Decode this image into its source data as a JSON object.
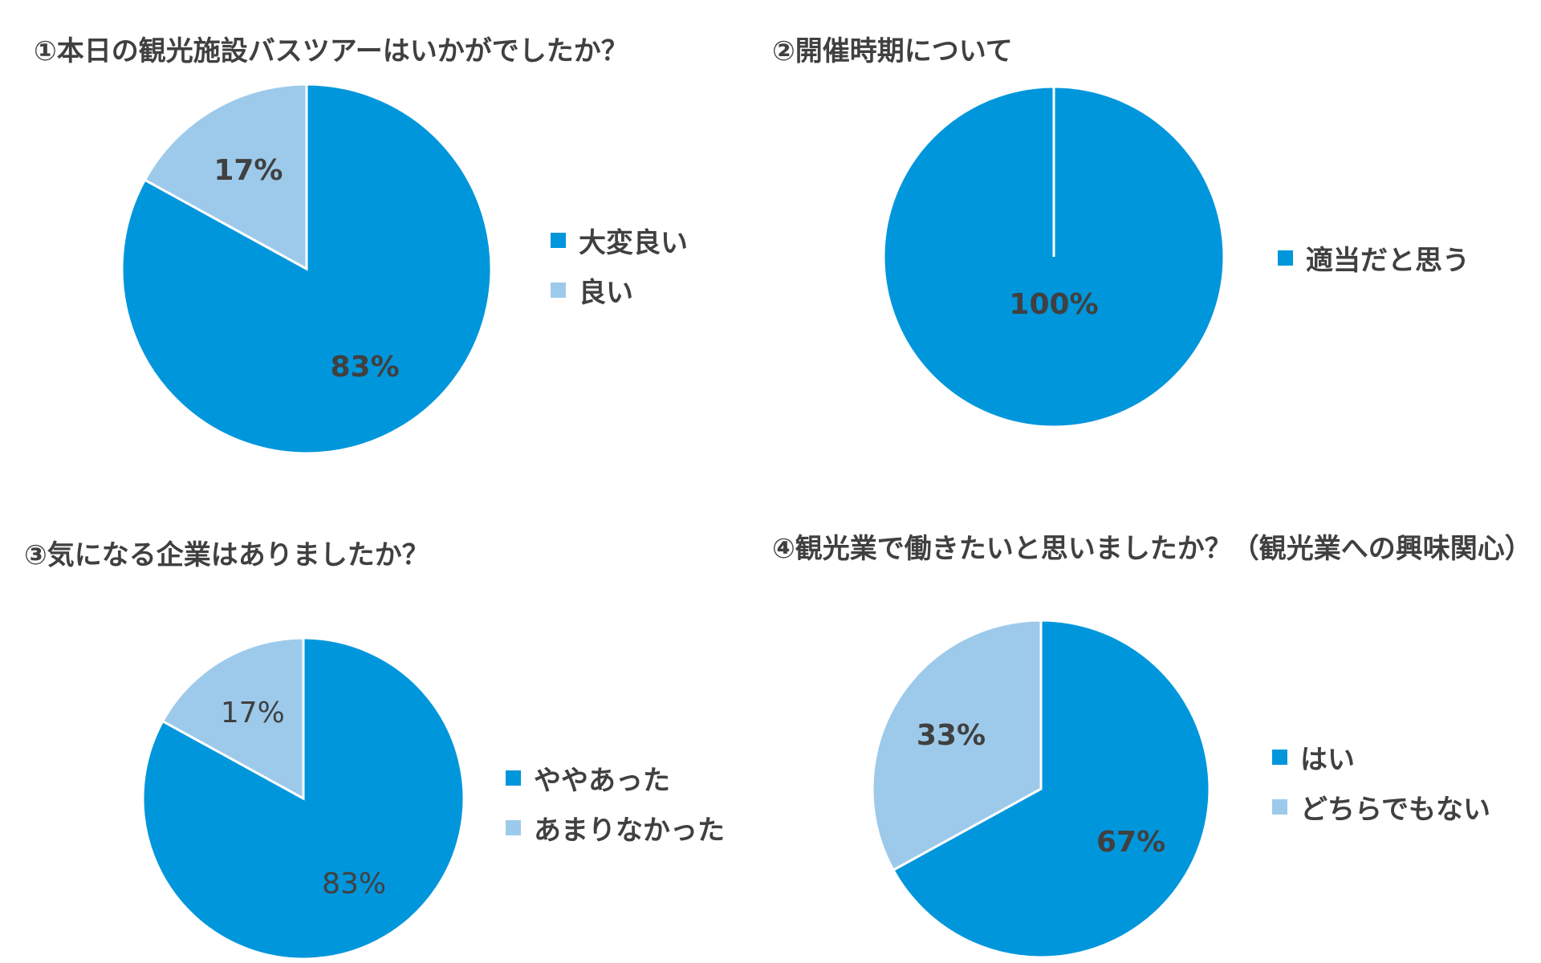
{
  "colors": {
    "dark_blue": "#0096DC",
    "light_blue": "#9DCAEB",
    "text": "#404040"
  },
  "chart_data": [
    {
      "type": "pie",
      "title": "①本日の観光施設バスツアーはいかがでしたか？",
      "categories": [
        "大変良い",
        "良い"
      ],
      "values": [
        83,
        17
      ],
      "data_labels": [
        "83%",
        "17%"
      ],
      "colors": [
        "#0096DC",
        "#9DCAEB"
      ],
      "label_weight": "bold",
      "legend": "right"
    },
    {
      "type": "pie",
      "title": "②開催時期について",
      "categories": [
        "適当だと思う"
      ],
      "values": [
        100
      ],
      "data_labels": [
        "100%"
      ],
      "colors": [
        "#0096DC"
      ],
      "label_weight": "bold",
      "legend": "right"
    },
    {
      "type": "pie",
      "title": "③気になる企業はありましたか？",
      "categories": [
        "ややあった",
        "あまりなかった"
      ],
      "values": [
        83,
        17
      ],
      "data_labels": [
        "83%",
        "17%"
      ],
      "colors": [
        "#0096DC",
        "#9DCAEB"
      ],
      "label_weight": "normal",
      "legend": "right"
    },
    {
      "type": "pie",
      "title": "④観光業で働きたいと思いましたか？（観光業への興味関心）",
      "categories": [
        "はい",
        "どちらでもない"
      ],
      "values": [
        67,
        33
      ],
      "data_labels": [
        "67%",
        "33%"
      ],
      "colors": [
        "#0096DC",
        "#9DCAEB"
      ],
      "label_weight": "bold",
      "legend": "right"
    }
  ]
}
